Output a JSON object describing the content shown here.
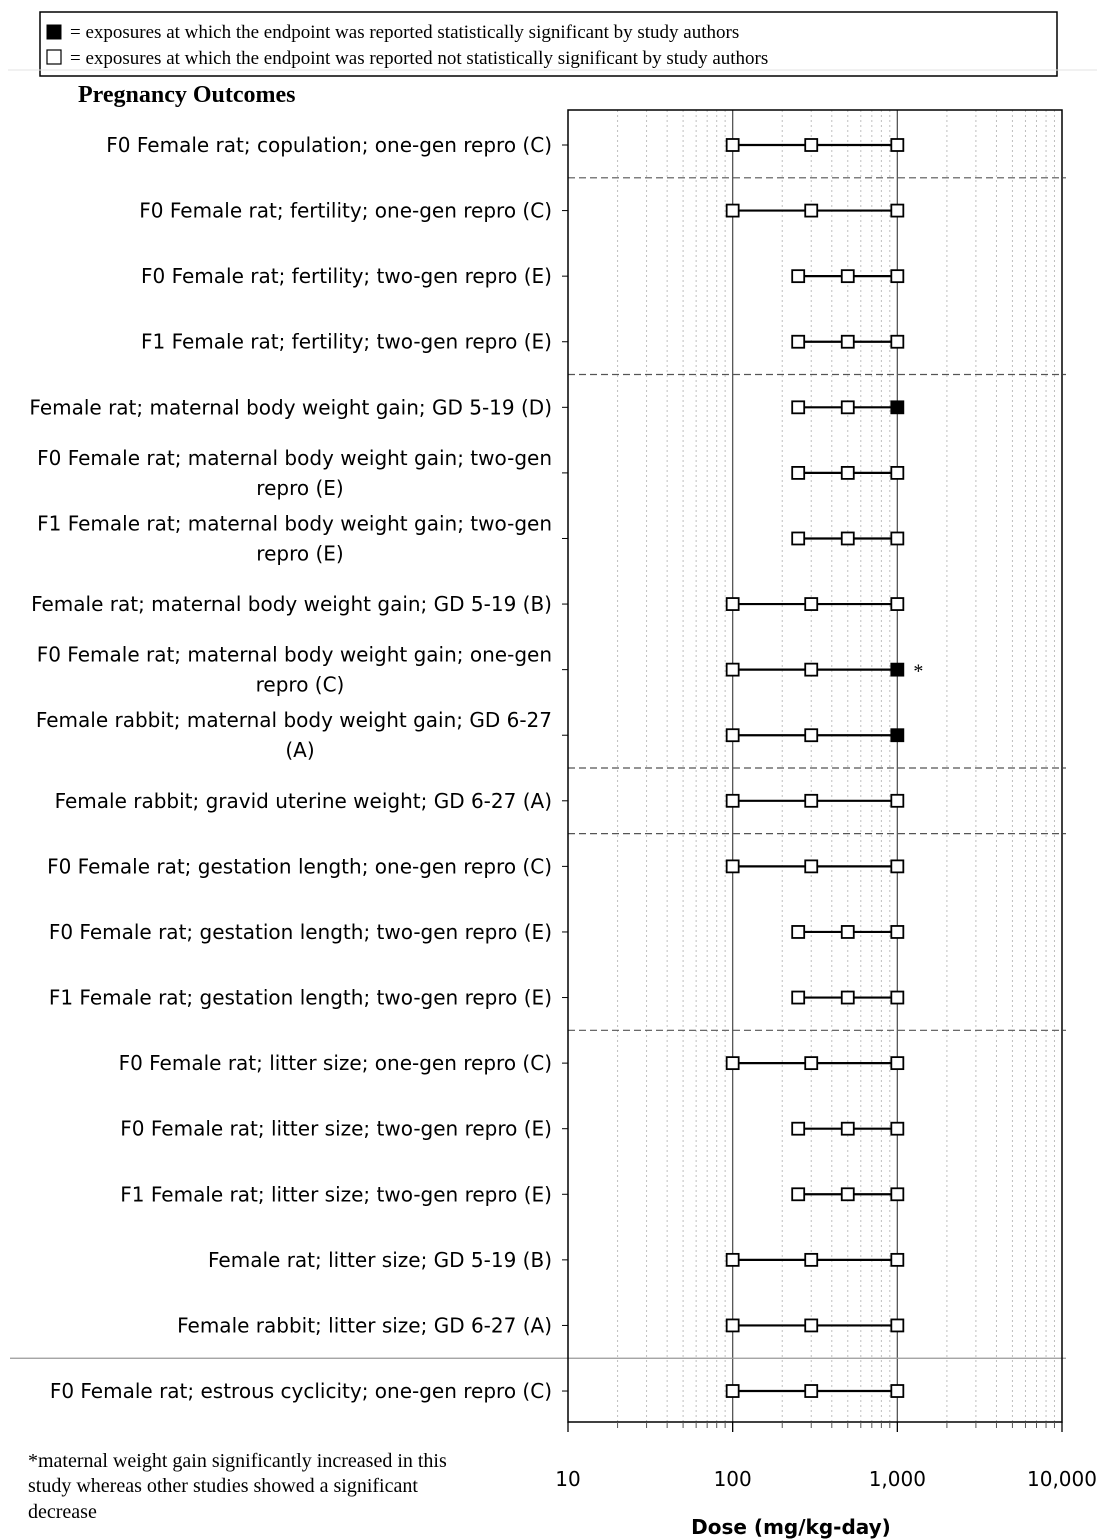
{
  "legend": {
    "significant": "= exposures at which the endpoint was reported statistically significant by study authors",
    "not_significant": "= exposures at which the endpoint was reported not statistically significant by study authors"
  },
  "section_title": "Pregnancy Outcomes",
  "footnote": [
    "*maternal weight gain significantly increased in this",
    "study whereas other studies showed a significant",
    "decrease"
  ],
  "colors": {
    "significant_fill": "#000000",
    "not_significant_fill": "#ffffff",
    "stroke": "#000000",
    "grid": "#bfbfbf"
  },
  "chart_data": {
    "type": "scatter",
    "title": "",
    "xlabel": "Dose (mg/kg-day)",
    "ylabel": "",
    "xscale": "log",
    "xlim": [
      10,
      10000
    ],
    "x_ticks": [
      {
        "value": 10,
        "label": "10"
      },
      {
        "value": 100,
        "label": "100"
      },
      {
        "value": 1000,
        "label": "1,000"
      },
      {
        "value": 10000,
        "label": "10,000"
      }
    ],
    "grid": true,
    "rows": [
      {
        "label": [
          "F0 Female rat; copulation; one-gen repro (C)"
        ],
        "doses": [
          100,
          300,
          1000
        ],
        "significant": [
          false,
          false,
          false
        ]
      },
      {
        "label": [
          "F0 Female rat; fertility; one-gen repro (C)"
        ],
        "doses": [
          100,
          300,
          1000
        ],
        "significant": [
          false,
          false,
          false
        ]
      },
      {
        "label": [
          "F0 Female rat; fertility; two-gen repro (E)"
        ],
        "doses": [
          250,
          500,
          1000
        ],
        "significant": [
          false,
          false,
          false
        ]
      },
      {
        "label": [
          "F1 Female rat; fertility; two-gen repro (E)"
        ],
        "doses": [
          250,
          500,
          1000
        ],
        "significant": [
          false,
          false,
          false
        ]
      },
      {
        "label": [
          "Female rat; maternal body weight gain; GD 5-19 (D)"
        ],
        "doses": [
          250,
          500,
          1000
        ],
        "significant": [
          false,
          false,
          true
        ]
      },
      {
        "label": [
          "F0 Female rat; maternal body weight gain; two-gen",
          "repro (E)"
        ],
        "doses": [
          250,
          500,
          1000
        ],
        "significant": [
          false,
          false,
          false
        ]
      },
      {
        "label": [
          "F1 Female rat; maternal body weight gain; two-gen",
          "repro (E)"
        ],
        "doses": [
          250,
          500,
          1000
        ],
        "significant": [
          false,
          false,
          false
        ]
      },
      {
        "label": [
          "Female rat; maternal body weight gain; GD 5-19 (B)"
        ],
        "doses": [
          100,
          300,
          1000
        ],
        "significant": [
          false,
          false,
          false
        ]
      },
      {
        "label": [
          "F0 Female rat; maternal body weight gain; one-gen",
          "repro (C)"
        ],
        "doses": [
          100,
          300,
          1000
        ],
        "significant": [
          false,
          false,
          true
        ],
        "annotation": "*"
      },
      {
        "label": [
          "Female rabbit; maternal body weight gain; GD 6-27",
          "(A)"
        ],
        "doses": [
          100,
          300,
          1000
        ],
        "significant": [
          false,
          false,
          true
        ]
      },
      {
        "label": [
          "Female rabbit; gravid uterine weight; GD 6-27 (A)"
        ],
        "doses": [
          100,
          300,
          1000
        ],
        "significant": [
          false,
          false,
          false
        ]
      },
      {
        "label": [
          "F0 Female rat; gestation length; one-gen repro (C)"
        ],
        "doses": [
          100,
          300,
          1000
        ],
        "significant": [
          false,
          false,
          false
        ]
      },
      {
        "label": [
          "F0 Female rat; gestation length; two-gen repro (E)"
        ],
        "doses": [
          250,
          500,
          1000
        ],
        "significant": [
          false,
          false,
          false
        ]
      },
      {
        "label": [
          "F1 Female rat; gestation length; two-gen repro (E)"
        ],
        "doses": [
          250,
          500,
          1000
        ],
        "significant": [
          false,
          false,
          false
        ]
      },
      {
        "label": [
          "F0 Female rat; litter size; one-gen repro (C)"
        ],
        "doses": [
          100,
          300,
          1000
        ],
        "significant": [
          false,
          false,
          false
        ]
      },
      {
        "label": [
          "F0 Female rat; litter size; two-gen repro (E)"
        ],
        "doses": [
          250,
          500,
          1000
        ],
        "significant": [
          false,
          false,
          false
        ]
      },
      {
        "label": [
          "F1 Female rat; litter size; two-gen repro (E)"
        ],
        "doses": [
          250,
          500,
          1000
        ],
        "significant": [
          false,
          false,
          false
        ]
      },
      {
        "label": [
          "Female rat; litter size; GD 5-19 (B)"
        ],
        "doses": [
          100,
          300,
          1000
        ],
        "significant": [
          false,
          false,
          false
        ]
      },
      {
        "label": [
          "Female rabbit; litter size; GD 6-27 (A)"
        ],
        "doses": [
          100,
          300,
          1000
        ],
        "significant": [
          false,
          false,
          false
        ]
      },
      {
        "label": [
          "F0 Female rat; estrous cyclicity; one-gen repro (C)"
        ],
        "doses": [
          100,
          300,
          1000
        ],
        "significant": [
          false,
          false,
          false
        ]
      }
    ],
    "group_separators_after_row": [
      0,
      3,
      9,
      10,
      13,
      18
    ]
  }
}
